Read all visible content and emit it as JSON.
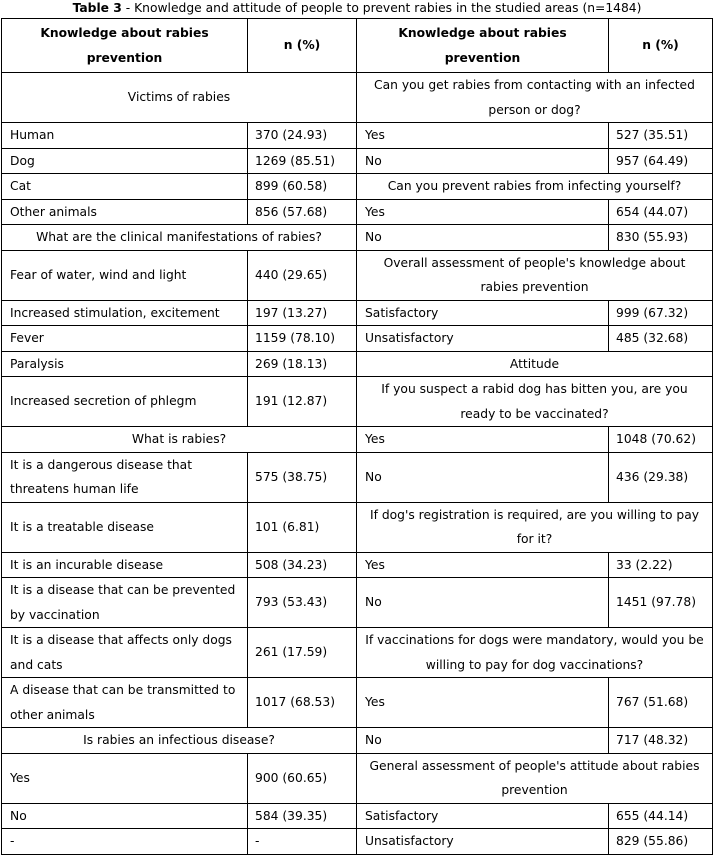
{
  "caption": {
    "label": "Table 3",
    "text": " - Knowledge and attitude of people to prevent rabies in the studied areas (n=1484)"
  },
  "headers": [
    "Knowledge about rabies prevention",
    "n (%)",
    "Knowledge about rabies prevention",
    "n (%)"
  ],
  "rows": [
    {
      "left": {
        "section": "Victims of rabies"
      },
      "right": {
        "section": "Can you get rabies from contacting with an infected person or dog?"
      }
    },
    {
      "left": {
        "label": "Human",
        "value": "370 (24.93)"
      },
      "right": {
        "label": "Yes",
        "value": "527 (35.51)"
      }
    },
    {
      "left": {
        "label": "Dog",
        "value": "1269 (85.51)"
      },
      "right": {
        "label": "No",
        "value": "957 (64.49)"
      }
    },
    {
      "left": {
        "label": "Cat",
        "value": "899 (60.58)"
      },
      "right": {
        "section": "Can you prevent rabies from infecting yourself?"
      }
    },
    {
      "left": {
        "label": "Other animals",
        "value": "856 (57.68)"
      },
      "right": {
        "label": "Yes",
        "value": "654 (44.07)"
      }
    },
    {
      "left": {
        "section": "What are the clinical manifestations of rabies?"
      },
      "right": {
        "label": "No",
        "value": "830 (55.93)"
      }
    },
    {
      "left": {
        "label": "Fear of water, wind and light",
        "value": "440 (29.65)"
      },
      "right": {
        "section": "Overall assessment of people's knowledge about rabies prevention"
      }
    },
    {
      "left": {
        "label": "Increased stimulation, excitement",
        "value": "197 (13.27)"
      },
      "right": {
        "label": "Satisfactory",
        "value": "999 (67.32)"
      }
    },
    {
      "left": {
        "label": "Fever",
        "value": "1159 (78.10)"
      },
      "right": {
        "label": "Unsatisfactory",
        "value": "485 (32.68)"
      }
    },
    {
      "left": {
        "label": "Paralysis",
        "value": "269 (18.13)"
      },
      "right": {
        "section": "Attitude"
      }
    },
    {
      "left": {
        "label": "Increased secretion of phlegm",
        "value": "191 (12.87)"
      },
      "right": {
        "section": "If you suspect a rabid dog has bitten you, are you ready to be vaccinated?"
      }
    },
    {
      "left": {
        "section": "What is rabies?"
      },
      "right": {
        "label": "Yes",
        "value": "1048 (70.62)"
      }
    },
    {
      "left": {
        "label": "It is a dangerous disease that threatens human life",
        "value": "575 (38.75)"
      },
      "right": {
        "label": "No",
        "value": "436 (29.38)"
      }
    },
    {
      "left": {
        "label": "It is a treatable disease",
        "value": "101 (6.81)"
      },
      "right": {
        "section": "If dog's registration is required, are you willing to pay for it?"
      }
    },
    {
      "left": {
        "label": "It is an incurable disease",
        "value": "508 (34.23)"
      },
      "right": {
        "label": "Yes",
        "value": "33 (2.22)"
      }
    },
    {
      "left": {
        "label": "It is a disease that can be prevented by vaccination",
        "value": "793 (53.43)"
      },
      "right": {
        "label": "No",
        "value": "1451 (97.78)"
      }
    },
    {
      "left": {
        "label": "It is a disease that affects only dogs and cats",
        "value": "261 (17.59)"
      },
      "right": {
        "section": "If vaccinations for dogs were mandatory, would you be willing to pay for dog vaccinations?"
      }
    },
    {
      "left": {
        "label": "A disease that can be transmitted to other animals",
        "value": "1017 (68.53)"
      },
      "right": {
        "label": "Yes",
        "value": "767 (51.68)"
      }
    },
    {
      "left": {
        "section": "Is rabies an infectious disease?"
      },
      "right": {
        "label": "No",
        "value": "717 (48.32)"
      }
    },
    {
      "left": {
        "label": "Yes",
        "value": "900 (60.65)"
      },
      "right": {
        "section": "General assessment of people's attitude about rabies prevention"
      }
    },
    {
      "left": {
        "label": "No",
        "value": "584 (39.35)"
      },
      "right": {
        "label": "Satisfactory",
        "value": "655 (44.14)"
      }
    },
    {
      "left": {
        "label": "-",
        "value": "-"
      },
      "right": {
        "label": "Unsatisfactory",
        "value": "829 (55.86)"
      }
    }
  ]
}
